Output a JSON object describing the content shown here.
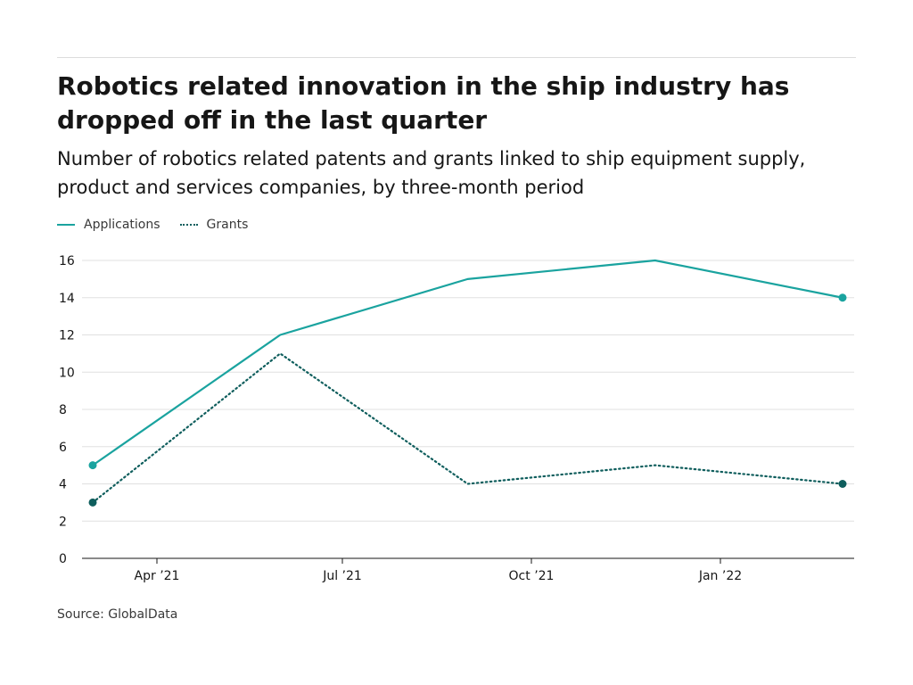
{
  "chart_data": {
    "type": "line",
    "title": "Robotics related innovation in the ship industry has dropped off in the last quarter",
    "subtitle": "Number of robotics related patents and grants linked to ship equipment supply, product and services companies, by three-month period",
    "x": [
      "2021-03",
      "2021-06",
      "2021-09",
      "2021-12",
      "2022-03"
    ],
    "x_ticks": [
      "Apr ’21",
      "Jul ’21",
      "Oct ’21",
      "Jan ’22"
    ],
    "series": [
      {
        "name": "Applications",
        "values": [
          5,
          12,
          15,
          16,
          14
        ],
        "color": "#1aa39f",
        "style": "solid"
      },
      {
        "name": "Grants",
        "values": [
          3,
          11,
          4,
          5,
          4
        ],
        "color": "#0f5e5d",
        "style": "dotted"
      }
    ],
    "ylim": [
      0,
      16
    ],
    "y_ticks": [
      "0",
      "2",
      "4",
      "6",
      "8",
      "10",
      "12",
      "14",
      "16"
    ],
    "grid": true,
    "legend": "top-left"
  },
  "source": "Source: GlobalData"
}
